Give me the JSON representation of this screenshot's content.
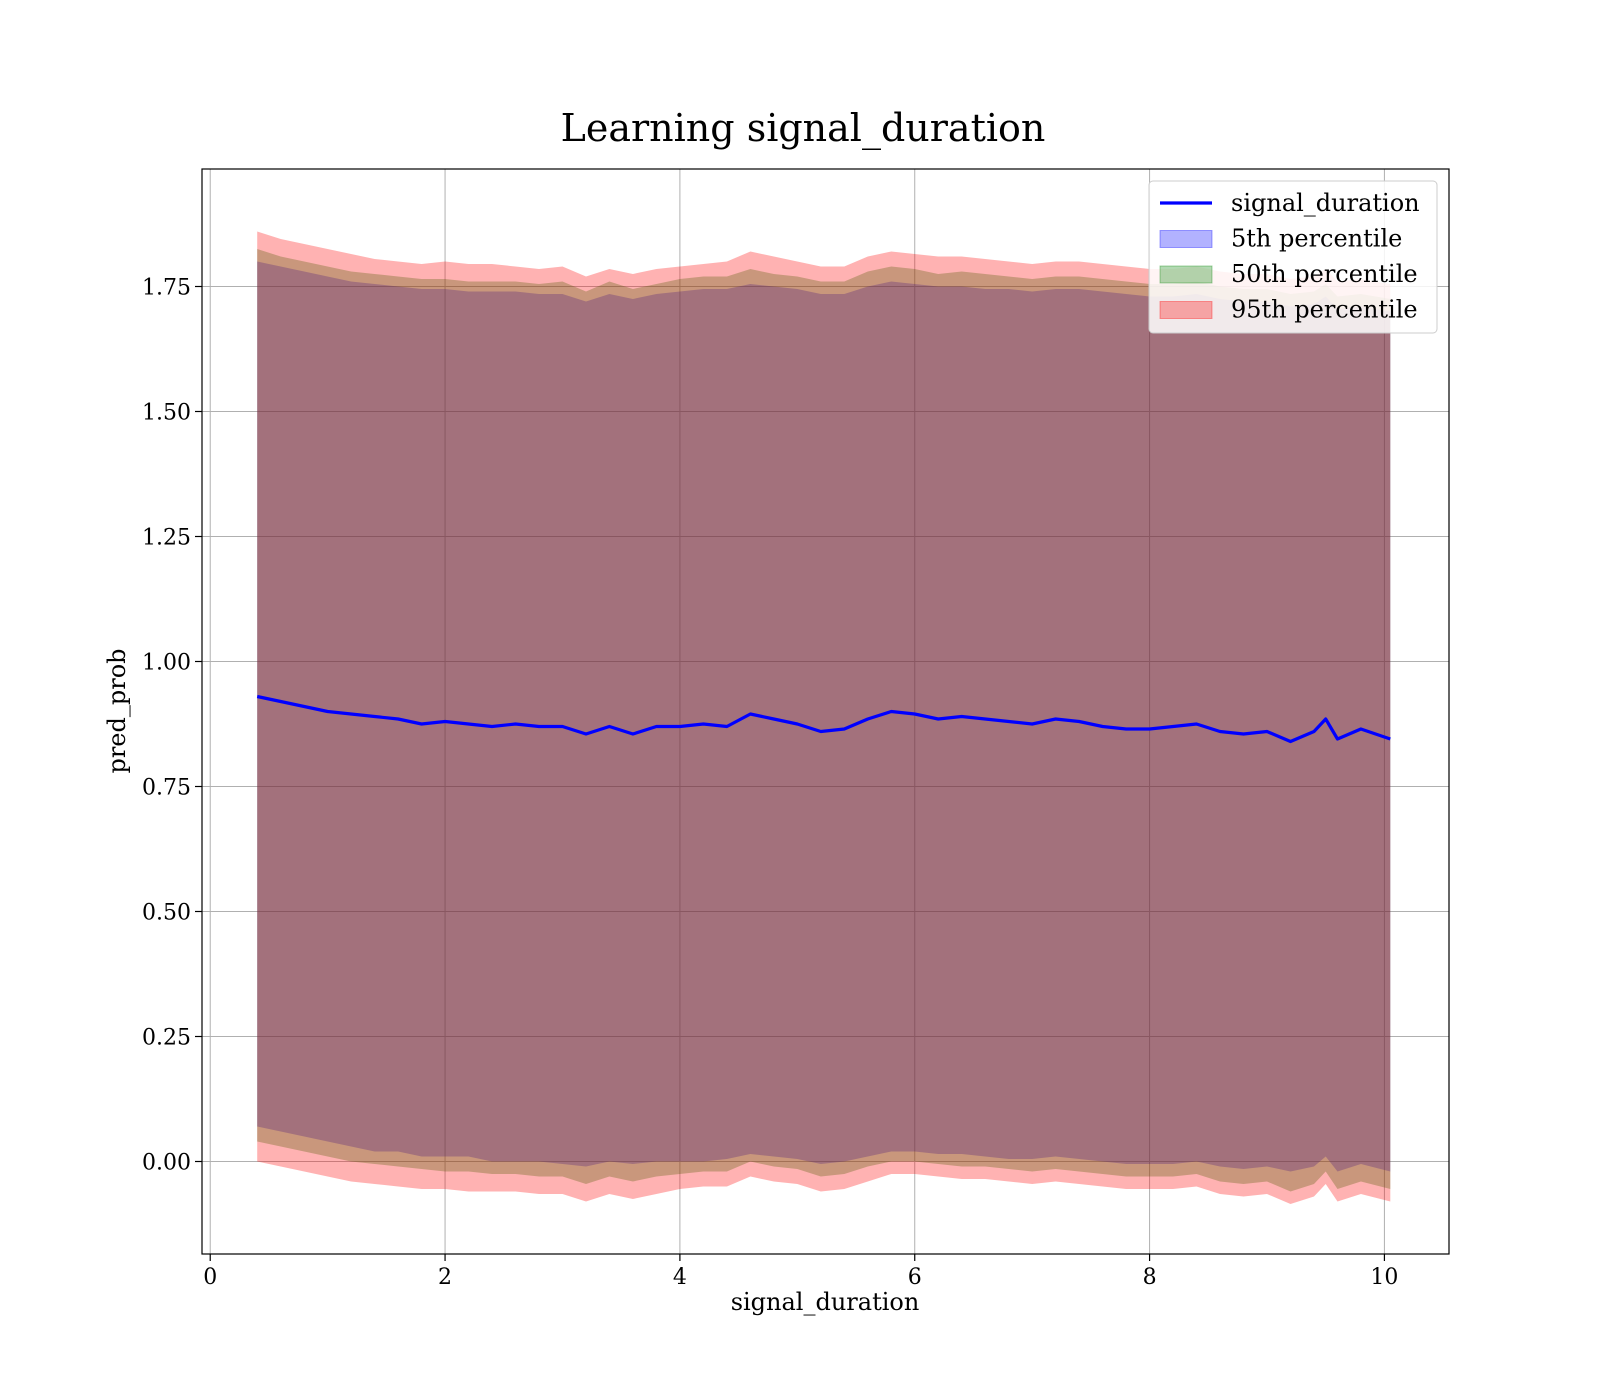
{
  "chart_data": {
    "type": "area",
    "title": "Learning signal_duration",
    "xlabel": "signal_duration",
    "ylabel": "pred_prob",
    "xlim": [
      -0.07,
      10.55
    ],
    "ylim": [
      -0.185,
      1.985
    ],
    "grid": true,
    "legend_position": "top-right",
    "x_ticks": [
      0,
      2,
      4,
      6,
      8,
      10
    ],
    "y_ticks": [
      0.0,
      0.25,
      0.5,
      0.75,
      1.0,
      1.25,
      1.5,
      1.75
    ],
    "x_tick_labels": [
      "0",
      "2",
      "4",
      "6",
      "8",
      "10"
    ],
    "y_tick_labels": [
      "0.00",
      "0.25",
      "0.50",
      "0.75",
      "1.00",
      "1.25",
      "1.50",
      "1.75"
    ],
    "x": [
      0.4,
      0.6,
      0.8,
      1.0,
      1.2,
      1.4,
      1.6,
      1.8,
      2.0,
      2.2,
      2.4,
      2.6,
      2.8,
      3.0,
      3.2,
      3.4,
      3.6,
      3.8,
      4.0,
      4.2,
      4.4,
      4.6,
      4.8,
      5.0,
      5.2,
      5.4,
      5.6,
      5.8,
      6.0,
      6.2,
      6.4,
      6.6,
      6.8,
      7.0,
      7.2,
      7.4,
      7.6,
      7.8,
      8.0,
      8.2,
      8.4,
      8.6,
      8.8,
      9.0,
      9.2,
      9.4,
      9.5,
      9.6,
      9.8,
      10.05
    ],
    "series": [
      {
        "name": "signal_duration",
        "kind": "line",
        "color": "#0000ff",
        "values": [
          0.93,
          0.92,
          0.91,
          0.9,
          0.895,
          0.89,
          0.885,
          0.875,
          0.88,
          0.875,
          0.87,
          0.875,
          0.87,
          0.87,
          0.855,
          0.87,
          0.855,
          0.87,
          0.87,
          0.875,
          0.87,
          0.895,
          0.885,
          0.875,
          0.86,
          0.865,
          0.885,
          0.9,
          0.895,
          0.885,
          0.89,
          0.885,
          0.88,
          0.875,
          0.885,
          0.88,
          0.87,
          0.865,
          0.865,
          0.87,
          0.875,
          0.86,
          0.855,
          0.86,
          0.84,
          0.86,
          0.885,
          0.845,
          0.865,
          0.845
        ]
      },
      {
        "name": "5th percentile",
        "kind": "band",
        "color": "#0000ff",
        "opacity": 0.3,
        "lower": [
          0.07,
          0.06,
          0.05,
          0.04,
          0.03,
          0.02,
          0.02,
          0.01,
          0.01,
          0.01,
          0.0,
          0.0,
          0.0,
          -0.005,
          -0.01,
          0.0,
          -0.005,
          0.0,
          0.0,
          0.0,
          0.005,
          0.015,
          0.01,
          0.005,
          -0.005,
          0.0,
          0.01,
          0.02,
          0.02,
          0.015,
          0.015,
          0.01,
          0.005,
          0.005,
          0.01,
          0.005,
          0.0,
          -0.005,
          -0.005,
          -0.005,
          0.0,
          -0.01,
          -0.015,
          -0.01,
          -0.02,
          -0.01,
          0.01,
          -0.02,
          -0.005,
          -0.02
        ],
        "upper": [
          1.8,
          1.79,
          1.78,
          1.77,
          1.76,
          1.755,
          1.75,
          1.745,
          1.745,
          1.74,
          1.74,
          1.74,
          1.735,
          1.735,
          1.72,
          1.735,
          1.725,
          1.735,
          1.74,
          1.745,
          1.745,
          1.755,
          1.75,
          1.745,
          1.735,
          1.735,
          1.75,
          1.76,
          1.755,
          1.75,
          1.75,
          1.745,
          1.745,
          1.74,
          1.745,
          1.745,
          1.74,
          1.735,
          1.73,
          1.73,
          1.735,
          1.725,
          1.72,
          1.72,
          1.71,
          1.715,
          1.73,
          1.705,
          1.71,
          1.7
        ]
      },
      {
        "name": "50th percentile",
        "kind": "band",
        "color": "#008000",
        "opacity": 0.3,
        "lower": [
          0.04,
          0.03,
          0.02,
          0.01,
          0.0,
          -0.005,
          -0.01,
          -0.015,
          -0.02,
          -0.02,
          -0.025,
          -0.025,
          -0.03,
          -0.03,
          -0.045,
          -0.03,
          -0.04,
          -0.03,
          -0.025,
          -0.02,
          -0.02,
          0.0,
          -0.01,
          -0.015,
          -0.03,
          -0.025,
          -0.01,
          0.0,
          0.0,
          -0.005,
          -0.01,
          -0.01,
          -0.015,
          -0.02,
          -0.015,
          -0.02,
          -0.025,
          -0.03,
          -0.03,
          -0.03,
          -0.025,
          -0.04,
          -0.045,
          -0.04,
          -0.06,
          -0.045,
          -0.02,
          -0.055,
          -0.04,
          -0.055
        ],
        "upper": [
          1.825,
          1.81,
          1.8,
          1.79,
          1.78,
          1.775,
          1.77,
          1.765,
          1.765,
          1.76,
          1.76,
          1.76,
          1.755,
          1.76,
          1.74,
          1.76,
          1.745,
          1.755,
          1.765,
          1.77,
          1.77,
          1.785,
          1.775,
          1.77,
          1.76,
          1.76,
          1.78,
          1.79,
          1.785,
          1.775,
          1.78,
          1.775,
          1.77,
          1.765,
          1.77,
          1.77,
          1.765,
          1.76,
          1.755,
          1.755,
          1.76,
          1.75,
          1.745,
          1.745,
          1.735,
          1.74,
          1.755,
          1.73,
          1.735,
          1.725
        ]
      },
      {
        "name": "95th percentile",
        "kind": "band",
        "color": "#ff0000",
        "opacity": 0.3,
        "lower": [
          0.0,
          -0.01,
          -0.02,
          -0.03,
          -0.04,
          -0.045,
          -0.05,
          -0.055,
          -0.055,
          -0.06,
          -0.06,
          -0.06,
          -0.065,
          -0.065,
          -0.08,
          -0.065,
          -0.075,
          -0.065,
          -0.055,
          -0.05,
          -0.05,
          -0.03,
          -0.04,
          -0.045,
          -0.06,
          -0.055,
          -0.04,
          -0.025,
          -0.025,
          -0.03,
          -0.035,
          -0.035,
          -0.04,
          -0.045,
          -0.04,
          -0.045,
          -0.05,
          -0.055,
          -0.055,
          -0.055,
          -0.05,
          -0.065,
          -0.07,
          -0.065,
          -0.085,
          -0.07,
          -0.045,
          -0.08,
          -0.065,
          -0.08
        ],
        "upper": [
          1.86,
          1.845,
          1.835,
          1.825,
          1.815,
          1.805,
          1.8,
          1.795,
          1.8,
          1.795,
          1.795,
          1.79,
          1.785,
          1.79,
          1.77,
          1.785,
          1.775,
          1.785,
          1.79,
          1.795,
          1.8,
          1.82,
          1.81,
          1.8,
          1.79,
          1.79,
          1.81,
          1.82,
          1.815,
          1.81,
          1.81,
          1.805,
          1.8,
          1.795,
          1.8,
          1.8,
          1.795,
          1.79,
          1.785,
          1.785,
          1.79,
          1.78,
          1.775,
          1.775,
          1.765,
          1.77,
          1.785,
          1.76,
          1.765,
          1.755
        ]
      }
    ],
    "legend": [
      {
        "label": "signal_duration",
        "kind": "line",
        "color": "#0000ff"
      },
      {
        "label": "5th percentile",
        "kind": "patch",
        "color": "#0000ff"
      },
      {
        "label": "50th percentile",
        "kind": "patch",
        "color": "#008000"
      },
      {
        "label": "95th percentile",
        "kind": "patch",
        "color": "#ff0000"
      }
    ]
  }
}
